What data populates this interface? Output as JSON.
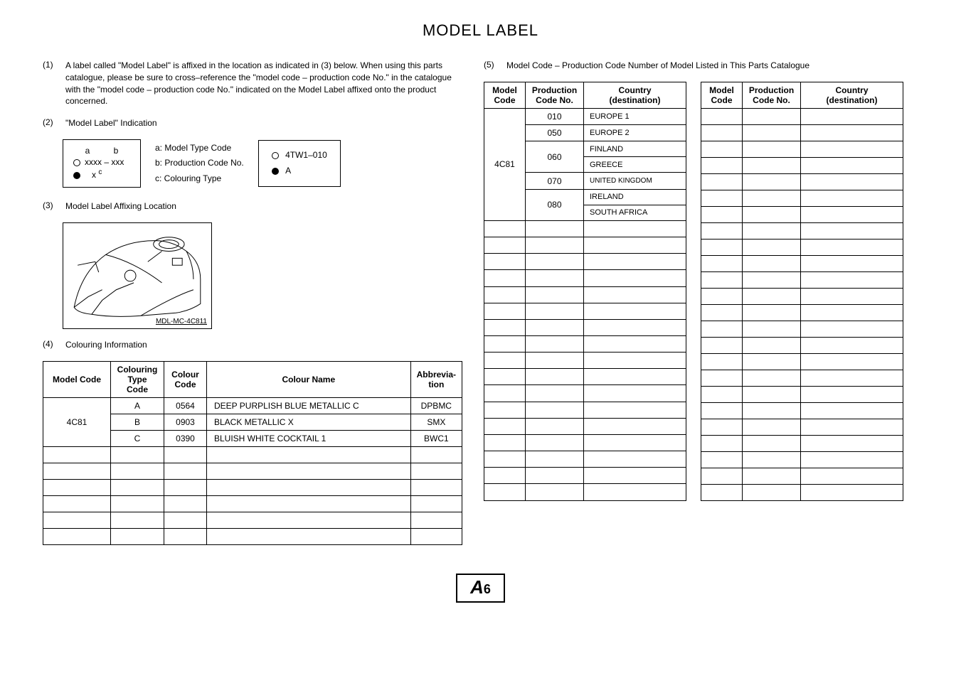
{
  "title": "MODEL LABEL",
  "sec1": {
    "num": "(1)",
    "text": "A label called \"Model Label\" is affixed in the location as indicated in (3) below. When using this parts catalogue, please be sure to cross–reference the \"model code – production code No.\" in the catalogue with the \"model code – production code No.\" indicated on the Model Label affixed onto the product concerned."
  },
  "sec2": {
    "num": "(2)",
    "text": "\"Model Label\" Indication",
    "box1": {
      "a": "a",
      "b": "b",
      "line1": "xxxx – xxx",
      "c_letter": "c",
      "line2": "x"
    },
    "keys": {
      "a": "a:  Model Type Code",
      "b": "b:  Production Code No.",
      "c": "c:  Colouring Type"
    },
    "box2": {
      "line1": "4TW1–010",
      "line2": "A"
    }
  },
  "sec3": {
    "num": "(3)",
    "text": "Model Label Affixing Location",
    "caption": "MDL-MC-4C811"
  },
  "sec4": {
    "num": "(4)",
    "text": "Colouring Information",
    "headers": {
      "model": "Model Code",
      "ctype": "Colouring Type Code",
      "ccode": "Colour Code",
      "cname": "Colour Name",
      "abbrev": "Abbrevia-\ntion"
    },
    "modelCode": "4C81",
    "rows": [
      {
        "type": "A",
        "code": "0564",
        "name": "DEEP PURPLISH BLUE METALLIC C",
        "abbrev": "DPBMC"
      },
      {
        "type": "B",
        "code": "0903",
        "name": "BLACK METALLIC X",
        "abbrev": "SMX"
      },
      {
        "type": "C",
        "code": "0390",
        "name": "BLUISH WHITE COCKTAIL 1",
        "abbrev": "BWC1"
      }
    ],
    "emptyRows": 6
  },
  "sec5": {
    "num": "(5)",
    "text": "Model Code – Production Code Number of Model Listed in This Parts Catalogue",
    "headers": {
      "model": "Model Code",
      "prod": "Production Code No.",
      "country": "Country (destination)"
    },
    "modelCode": "4C81",
    "rows": [
      {
        "prod": "010",
        "country": "EUROPE 1",
        "small": false
      },
      {
        "prod": "050",
        "country": "EUROPE 2",
        "small": false
      },
      {
        "prod": "060",
        "country": "FINLAND",
        "span": 2,
        "small": false
      },
      {
        "prod": null,
        "country": "GREECE",
        "small": false
      },
      {
        "prod": "070",
        "country": "UNITED KINGDOM",
        "small": true
      },
      {
        "prod": "080",
        "country": "IRELAND",
        "span": 2,
        "small": false
      },
      {
        "prod": null,
        "country": "SOUTH AFRICA",
        "small": false
      }
    ],
    "emptyRows": 17
  },
  "footer": {
    "letter": "A",
    "num": "6"
  }
}
